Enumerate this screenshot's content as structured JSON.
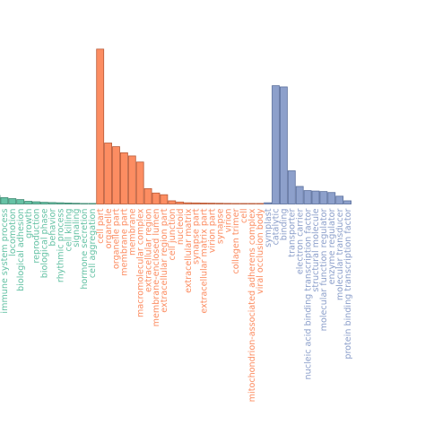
{
  "chart_data": {
    "type": "bar",
    "grid": false,
    "legend": "none",
    "ylim": [
      0,
      70
    ],
    "groups": [
      {
        "name": "",
        "color": "#66c2a5",
        "edge": "#3f8a72",
        "categories": [
          "...",
          "immune system process",
          "locomotion",
          "biological adhesion",
          "growth",
          "reproduction",
          "biological phase",
          "behavior",
          "rhythmic process",
          "cell killing",
          "signaling",
          "hormone secretion",
          "cell aggregation"
        ],
        "values": [
          3.5,
          2.6,
          2.2,
          1.8,
          1.1,
          0.9,
          0.7,
          0.6,
          0.5,
          0.4,
          0.3,
          0.2,
          0.1
        ]
      },
      {
        "name": "",
        "color": "#fc8d62",
        "edge": "#b85a38",
        "categories": [
          "cell part",
          "organelle",
          "organelle part",
          "membrane part",
          "membrane",
          "macromolecular complex",
          "extracellular region",
          "membrane-enclosed lumen",
          "extracellular region part",
          "cell junction",
          "nucleoid",
          "extracellular matrix",
          "synapse part",
          "extracellular matrix part",
          "virion part",
          "synapse",
          "virion",
          "collagen trimer",
          "cell",
          "mitochondrion-associated adherens complex",
          "viral occlusion body"
        ],
        "values": [
          63.5,
          25,
          23.5,
          21,
          19.7,
          17.2,
          6.3,
          4.5,
          3.8,
          1.3,
          0.8,
          0.5,
          0.45,
          0.4,
          0.35,
          0.3,
          0.25,
          0.2,
          0.15,
          0.1,
          0.1
        ]
      },
      {
        "name": "",
        "color": "#8da0cb",
        "edge": "#5a6f9c",
        "categories": [
          "symplast",
          "catalytic",
          "binding",
          "transporter",
          "electron carrier",
          "nucleic acid binding transcription factor",
          "structural molecule",
          "molecular function regulator",
          "enzyme regulator",
          "molecular transducer",
          "protein binding transcription factor"
        ],
        "values": [
          0.5,
          48.5,
          48,
          13.6,
          7.2,
          5.5,
          5.3,
          5.1,
          4.7,
          3.2,
          1.3
        ]
      }
    ]
  }
}
